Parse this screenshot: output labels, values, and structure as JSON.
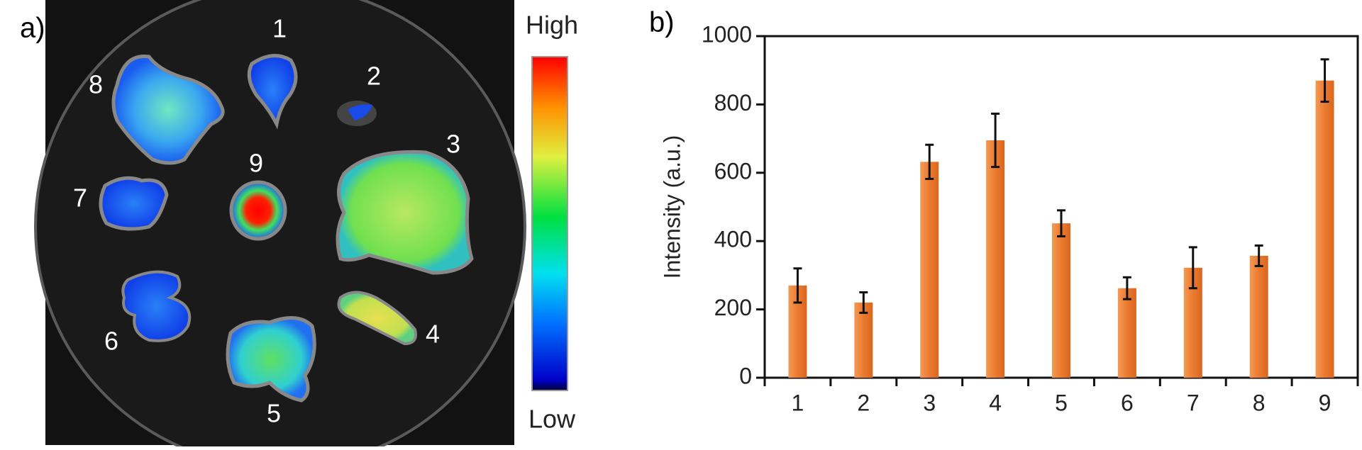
{
  "panel_a": {
    "panel_label": "a)",
    "organ_labels": [
      "1",
      "2",
      "3",
      "4",
      "5",
      "6",
      "7",
      "8",
      "9"
    ],
    "colorbar": {
      "high": "High",
      "low": "Low"
    }
  },
  "chart_data": {
    "type": "bar",
    "panel_label": "b)",
    "y_label": "Intensity (a.u.)",
    "categories": [
      "1",
      "2",
      "3",
      "4",
      "5",
      "6",
      "7",
      "8",
      "9"
    ],
    "values": [
      270,
      220,
      632,
      695,
      452,
      262,
      322,
      357,
      870
    ],
    "errors": [
      50,
      30,
      50,
      78,
      38,
      32,
      60,
      30,
      62
    ],
    "color": "#ec7a2e",
    "ylim": [
      0,
      1000
    ],
    "yticks": [
      0,
      200,
      400,
      600,
      800,
      1000
    ]
  }
}
